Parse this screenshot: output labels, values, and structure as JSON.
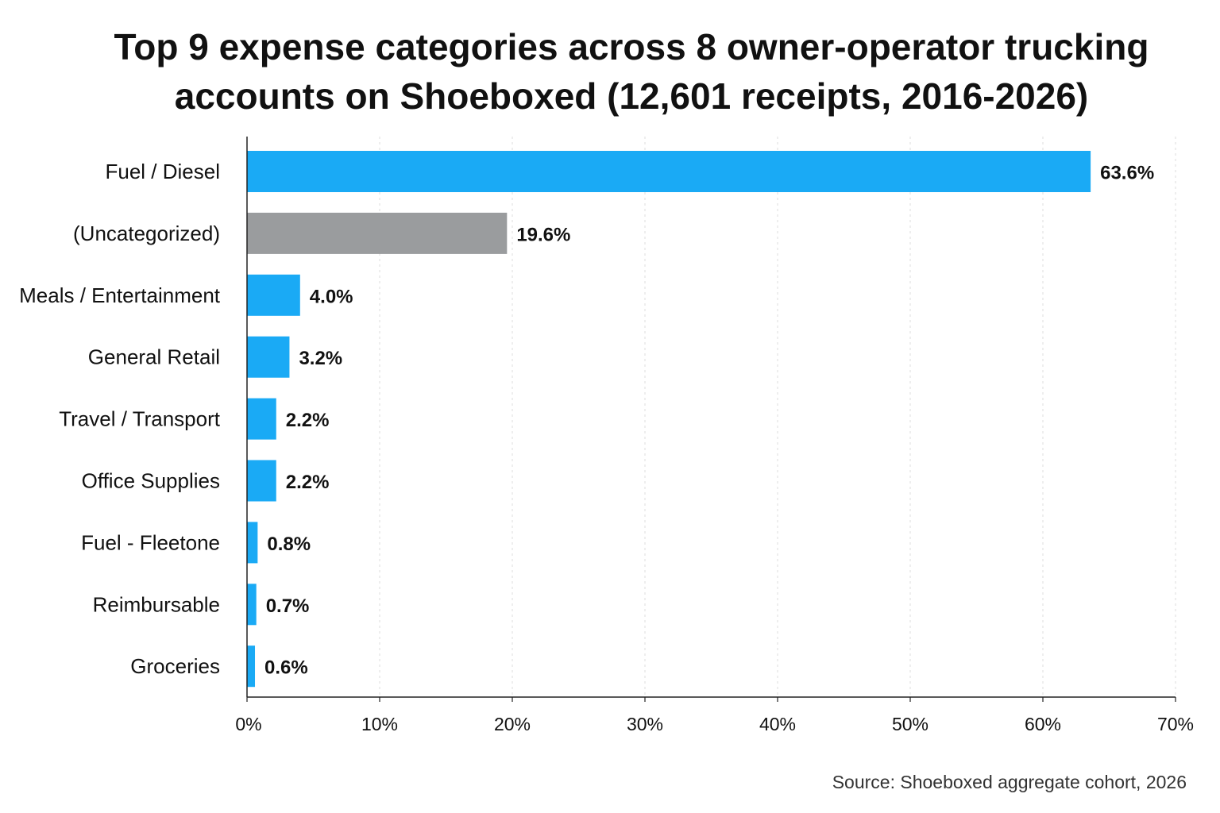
{
  "chart_data": {
    "type": "bar",
    "orientation": "horizontal",
    "title": "Top 9 expense categories across 8 owner-operator trucking accounts on Shoeboxed (12,601 receipts, 2016-2026)",
    "title_lines": [
      "Top 9 expense categories across 8 owner-operator trucking",
      "accounts on Shoeboxed (12,601 receipts, 2016-2026)"
    ],
    "categories": [
      "Fuel / Diesel",
      "(Uncategorized)",
      "Meals / Entertainment",
      "General Retail",
      "Travel / Transport",
      "Office Supplies",
      "Fuel - Fleetone",
      "Reimbursable",
      "Groceries"
    ],
    "values": [
      63.6,
      19.6,
      4.0,
      3.2,
      2.2,
      2.2,
      0.8,
      0.7,
      0.6
    ],
    "value_labels": [
      "63.6%",
      "19.6%",
      "4.0%",
      "3.2%",
      "2.2%",
      "2.2%",
      "0.8%",
      "0.7%",
      "0.6%"
    ],
    "bar_colors": [
      "#1aaaf5",
      "#9a9c9e",
      "#1aaaf5",
      "#1aaaf5",
      "#1aaaf5",
      "#1aaaf5",
      "#1aaaf5",
      "#1aaaf5",
      "#1aaaf5"
    ],
    "xlim": [
      0,
      70
    ],
    "xticks": [
      0,
      10,
      20,
      30,
      40,
      50,
      60,
      70
    ],
    "xtick_labels": [
      "0%",
      "10%",
      "20%",
      "30%",
      "40%",
      "50%",
      "60%",
      "70%"
    ],
    "xlabel": "",
    "ylabel": "",
    "grid": "vertical dashed",
    "legend": "none",
    "source": "Source: Shoeboxed aggregate cohort, 2026"
  },
  "colors": {
    "primary_bar": "#1aaaf5",
    "uncategorized_bar": "#9a9c9e",
    "grid": "#dddddd",
    "axis": "#222222"
  }
}
